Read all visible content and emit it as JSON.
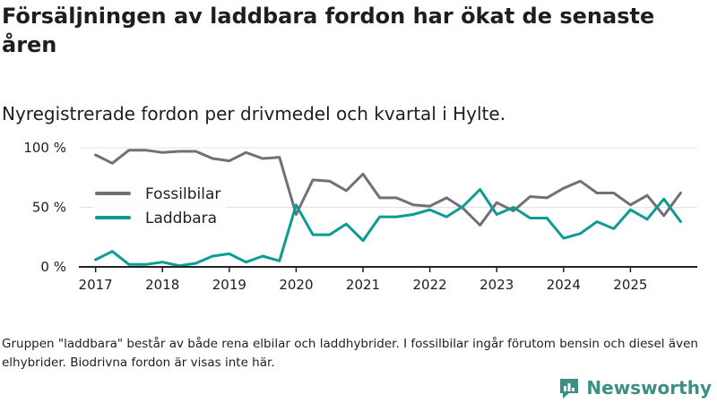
{
  "title": "Försäljningen av laddbara fordon har ökat de senaste åren",
  "subtitle": "Nyregistrerade fordon per drivmedel och kvartal i Hylte.",
  "note": "Gruppen \"laddbara\" består av både rena elbilar och laddhybrider. I fossilbilar ingår förutom bensin och diesel även elhybrider. Biodrivna fordon är visas inte här.",
  "brand": {
    "name": "Newsworthy",
    "icon": "newsworthy-logo-icon"
  },
  "colors": {
    "fossil": "#717075",
    "laddbara": "#0d9c92",
    "grid": "#e3e3e3",
    "axis": "#222222"
  },
  "chart_data": {
    "type": "line",
    "title": "Nyregistrerade fordon per drivmedel och kvartal i Hylte.",
    "xlabel": "",
    "ylabel": "",
    "ylim": [
      0,
      100
    ],
    "y_ticks": [
      0,
      50,
      100
    ],
    "y_tick_labels": [
      "0 %",
      "50 %",
      "100 %"
    ],
    "x_start": 2017.0,
    "x_step": 0.25,
    "xlim": [
      2016.75,
      2026.0
    ],
    "x_ticks": [
      2017,
      2018,
      2019,
      2020,
      2021,
      2022,
      2023,
      2024,
      2025
    ],
    "x_tick_labels": [
      "2017",
      "2018",
      "2019",
      "2020",
      "2021",
      "2022",
      "2023",
      "2024",
      "2025"
    ],
    "legend": "top-left",
    "series": [
      {
        "name": "Fossilbilar",
        "color": "#717075",
        "values": [
          94,
          87,
          98,
          98,
          96,
          97,
          97,
          91,
          89,
          96,
          91,
          92,
          44,
          73,
          72,
          64,
          78,
          58,
          58,
          52,
          51,
          58,
          49,
          35,
          54,
          47,
          59,
          58,
          66,
          72,
          62,
          62,
          52,
          60,
          43,
          62
        ]
      },
      {
        "name": "Laddbara",
        "color": "#0d9c92",
        "values": [
          6,
          13,
          2,
          2,
          4,
          1,
          3,
          9,
          11,
          4,
          9,
          5,
          52,
          27,
          27,
          36,
          22,
          42,
          42,
          44,
          48,
          42,
          51,
          65,
          44,
          50,
          41,
          41,
          24,
          28,
          38,
          32,
          48,
          40,
          57,
          38
        ]
      }
    ]
  }
}
